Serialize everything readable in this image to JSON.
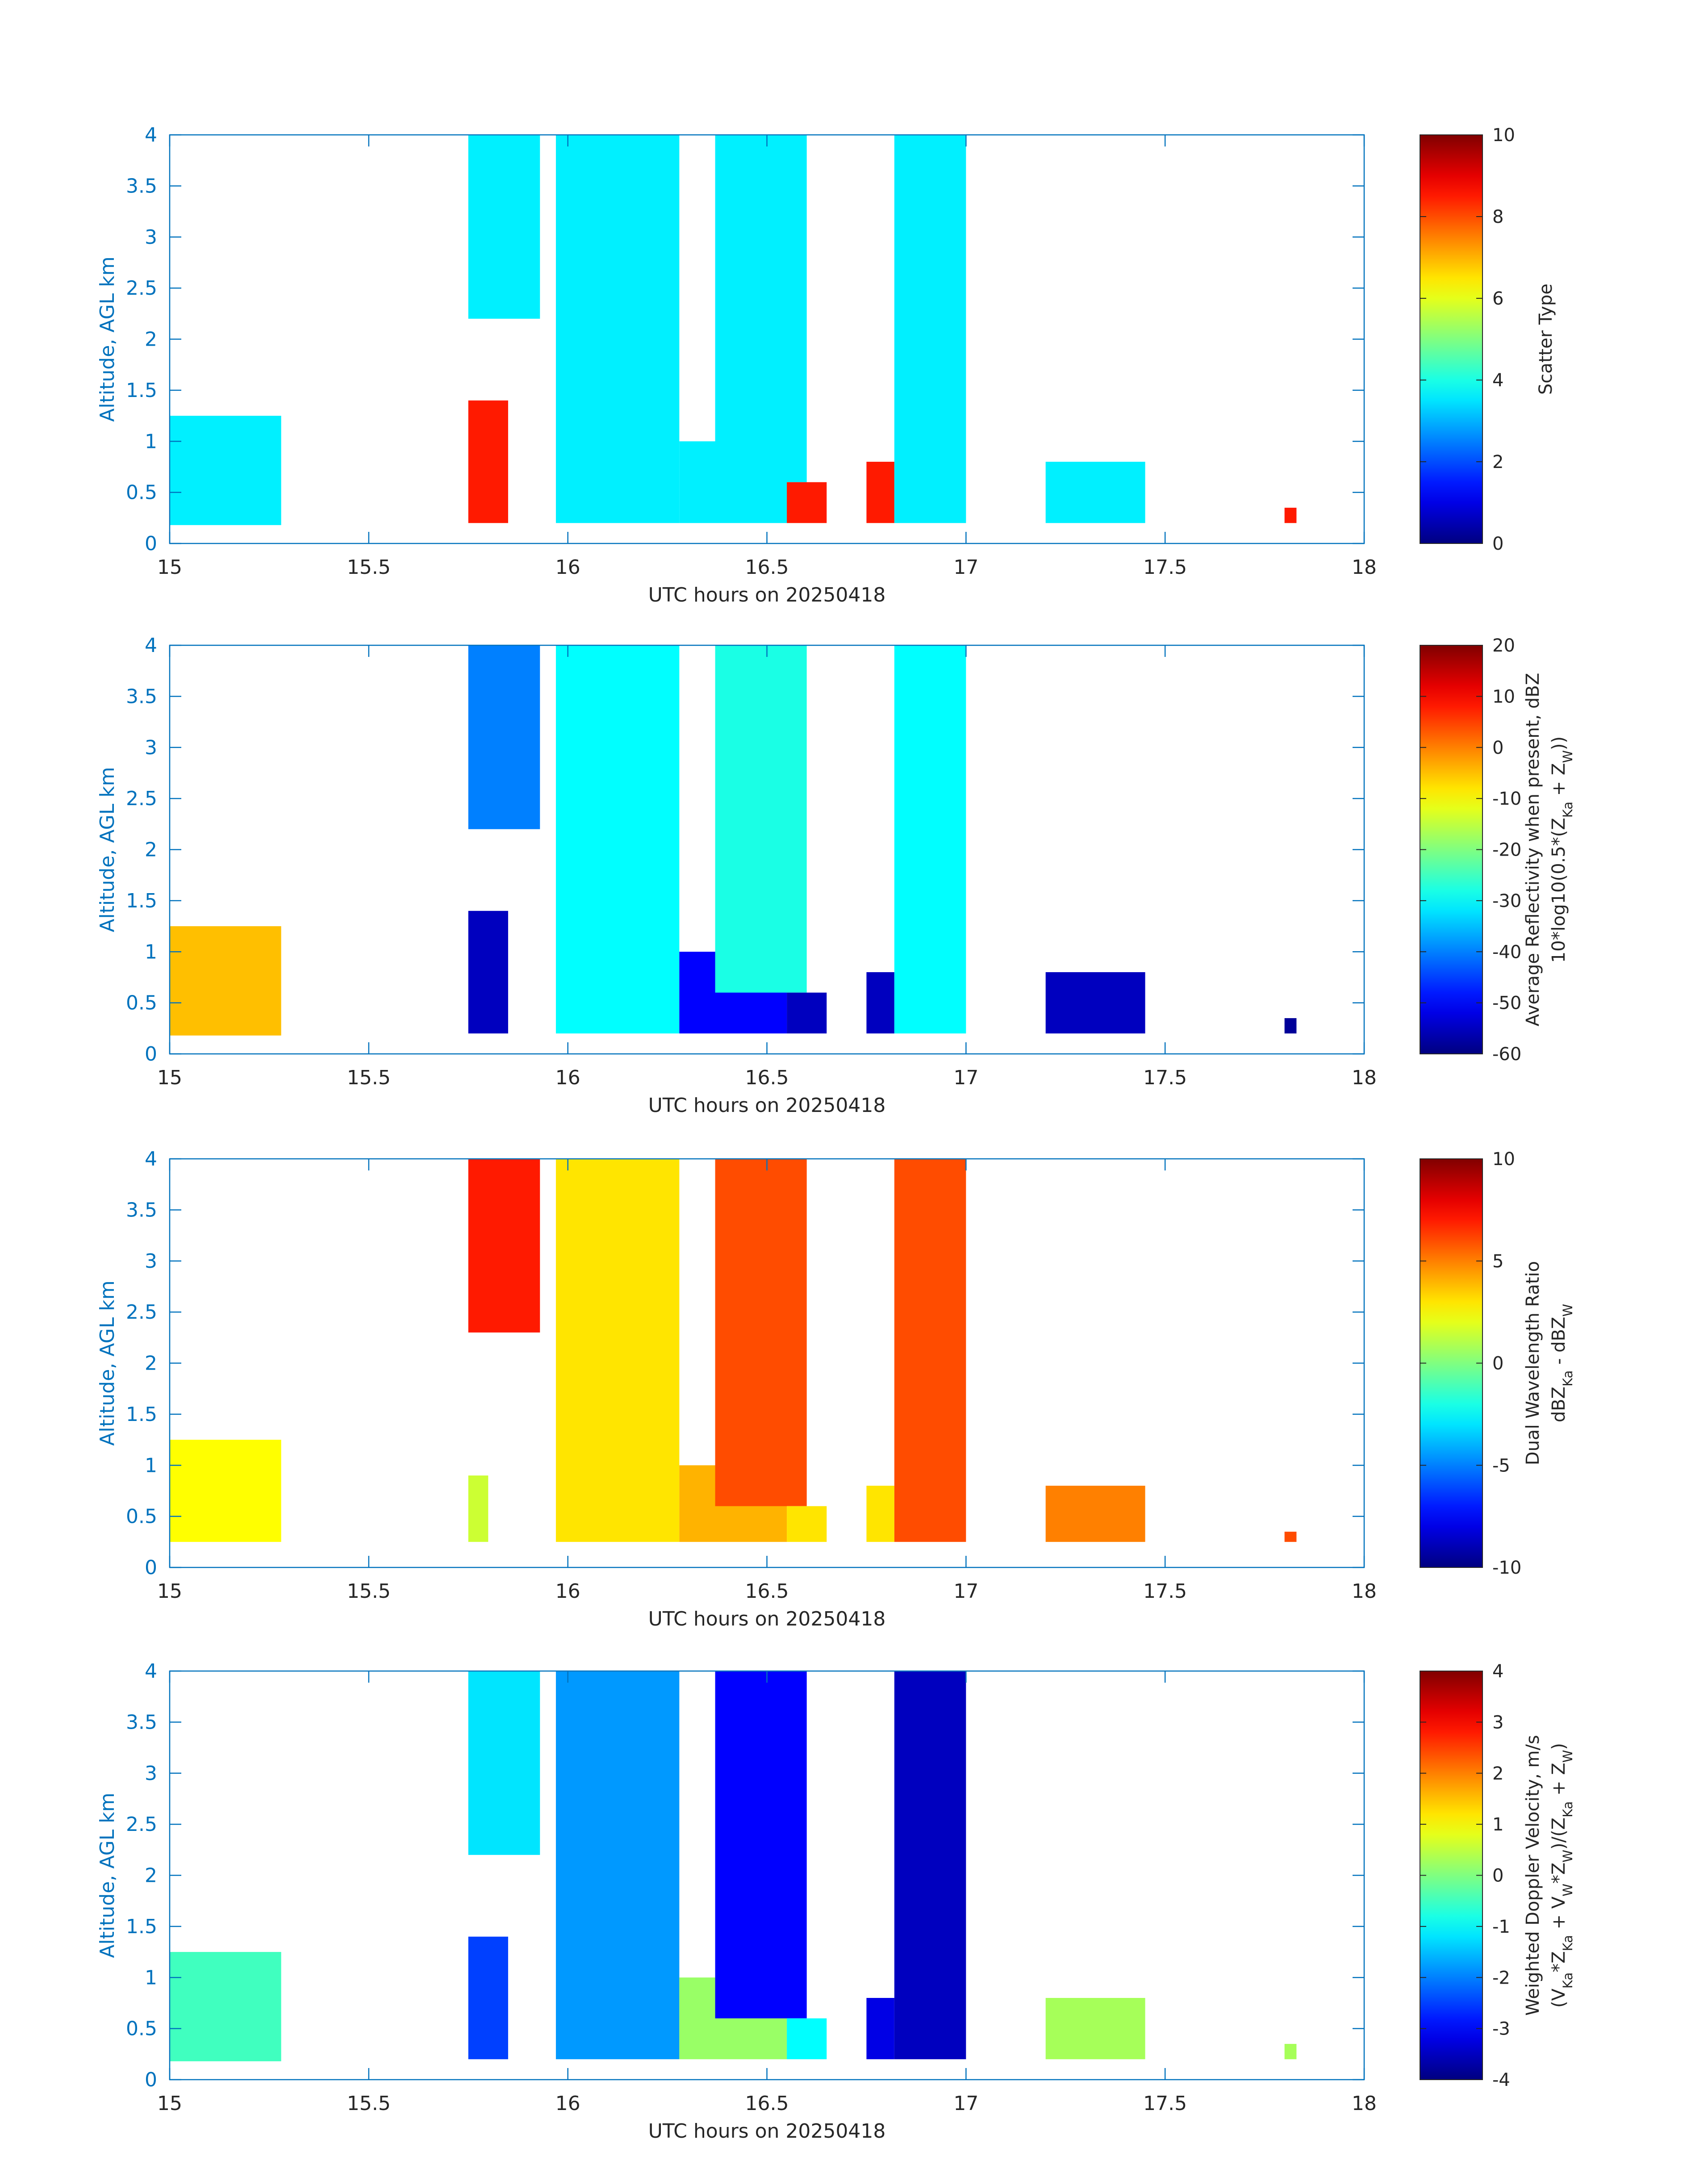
{
  "figure": {
    "xlabel": "UTC hours on 20250418",
    "ylabel": "Altitude, AGL km"
  },
  "colormap": "jet",
  "axis_color": "#0072BD",
  "chart_data": [
    {
      "type": "heatmap",
      "xlabel": "UTC hours on 20250418",
      "ylabel": "Altitude, AGL km",
      "xlim": [
        15,
        18
      ],
      "ylim": [
        0,
        4
      ],
      "xticks": [
        "15",
        "15.5",
        "16",
        "16.5",
        "17",
        "17.5",
        "18"
      ],
      "yticks": [
        "0",
        "0.5",
        "1",
        "1.5",
        "2",
        "2.5",
        "3",
        "3.5",
        "4"
      ],
      "colorbar": {
        "label_lines": [
          "Scatter Type"
        ],
        "range": [
          0,
          10
        ],
        "ticks": [
          "0",
          "2",
          "4",
          "6",
          "8",
          "10"
        ]
      },
      "regions": [
        {
          "x": [
            15.0,
            15.28
          ],
          "y": [
            0.18,
            1.25
          ],
          "value": 3.6
        },
        {
          "x": [
            15.75,
            15.85
          ],
          "y": [
            0.2,
            1.4
          ],
          "value": 8.5
        },
        {
          "x": [
            15.75,
            15.93
          ],
          "y": [
            2.2,
            4.0
          ],
          "value": 3.6
        },
        {
          "x": [
            15.97,
            16.28
          ],
          "y": [
            0.2,
            4.0
          ],
          "value": 3.6
        },
        {
          "x": [
            16.28,
            16.55
          ],
          "y": [
            0.2,
            1.0
          ],
          "value": 3.6
        },
        {
          "x": [
            16.37,
            16.6
          ],
          "y": [
            0.6,
            4.0
          ],
          "value": 3.6
        },
        {
          "x": [
            16.55,
            16.65
          ],
          "y": [
            0.2,
            0.6
          ],
          "value": 8.5
        },
        {
          "x": [
            16.75,
            16.82
          ],
          "y": [
            0.2,
            0.8
          ],
          "value": 8.5
        },
        {
          "x": [
            16.82,
            17.0
          ],
          "y": [
            0.2,
            4.0
          ],
          "value": 3.6
        },
        {
          "x": [
            17.2,
            17.45
          ],
          "y": [
            0.2,
            0.8
          ],
          "value": 3.6
        },
        {
          "x": [
            17.8,
            17.83
          ],
          "y": [
            0.2,
            0.35
          ],
          "value": 8.5
        }
      ]
    },
    {
      "type": "heatmap",
      "xlabel": "UTC hours on 20250418",
      "ylabel": "Altitude, AGL km",
      "xlim": [
        15,
        18
      ],
      "ylim": [
        0,
        4
      ],
      "xticks": [
        "15",
        "15.5",
        "16",
        "16.5",
        "17",
        "17.5",
        "18"
      ],
      "yticks": [
        "0",
        "0.5",
        "1",
        "1.5",
        "2",
        "2.5",
        "3",
        "3.5",
        "4"
      ],
      "colorbar": {
        "label_lines": [
          "Average Reflectivity when present, dBZ",
          "10*log10(0.5*(Z_Ka + Z_W))"
        ],
        "range": [
          -60,
          20
        ],
        "ticks": [
          "-60",
          "-50",
          "-40",
          "-30",
          "-20",
          "-10",
          "0",
          "10",
          "20"
        ]
      },
      "regions": [
        {
          "x": [
            15.0,
            15.28
          ],
          "y": [
            0.18,
            1.25
          ],
          "value": -5
        },
        {
          "x": [
            15.75,
            15.85
          ],
          "y": [
            0.2,
            1.4
          ],
          "value": -55
        },
        {
          "x": [
            15.75,
            15.93
          ],
          "y": [
            2.2,
            4.0
          ],
          "value": -40
        },
        {
          "x": [
            15.97,
            16.28
          ],
          "y": [
            0.2,
            4.0
          ],
          "value": -30
        },
        {
          "x": [
            16.28,
            16.55
          ],
          "y": [
            0.2,
            1.0
          ],
          "value": -50
        },
        {
          "x": [
            16.37,
            16.6
          ],
          "y": [
            0.6,
            4.0
          ],
          "value": -28
        },
        {
          "x": [
            16.55,
            16.65
          ],
          "y": [
            0.2,
            0.6
          ],
          "value": -55
        },
        {
          "x": [
            16.75,
            16.82
          ],
          "y": [
            0.2,
            0.8
          ],
          "value": -55
        },
        {
          "x": [
            16.82,
            17.0
          ],
          "y": [
            0.2,
            4.0
          ],
          "value": -30
        },
        {
          "x": [
            17.2,
            17.45
          ],
          "y": [
            0.2,
            0.8
          ],
          "value": -55
        },
        {
          "x": [
            17.8,
            17.83
          ],
          "y": [
            0.2,
            0.35
          ],
          "value": -58
        }
      ]
    },
    {
      "type": "heatmap",
      "xlabel": "UTC hours on 20250418",
      "ylabel": "Altitude, AGL km",
      "xlim": [
        15,
        18
      ],
      "ylim": [
        0,
        4
      ],
      "xticks": [
        "15",
        "15.5",
        "16",
        "16.5",
        "17",
        "17.5",
        "18"
      ],
      "yticks": [
        "0",
        "0.5",
        "1",
        "1.5",
        "2",
        "2.5",
        "3",
        "3.5",
        "4"
      ],
      "colorbar": {
        "label_lines": [
          "Dual Wavelength Ratio",
          "dBZ_Ka - dBZ_W"
        ],
        "range": [
          -10,
          10
        ],
        "ticks": [
          "-10",
          "-5",
          "0",
          "5",
          "10"
        ]
      },
      "regions": [
        {
          "x": [
            15.0,
            15.28
          ],
          "y": [
            0.25,
            1.25
          ],
          "value": 2.5
        },
        {
          "x": [
            15.75,
            15.8
          ],
          "y": [
            0.25,
            0.9
          ],
          "value": 1.5
        },
        {
          "x": [
            15.75,
            15.93
          ],
          "y": [
            2.3,
            4.0
          ],
          "value": 7
        },
        {
          "x": [
            15.97,
            16.28
          ],
          "y": [
            0.25,
            4.0
          ],
          "value": 3
        },
        {
          "x": [
            16.28,
            16.55
          ],
          "y": [
            0.25,
            1.0
          ],
          "value": 4
        },
        {
          "x": [
            16.37,
            16.6
          ],
          "y": [
            0.6,
            4.0
          ],
          "value": 6
        },
        {
          "x": [
            16.55,
            16.65
          ],
          "y": [
            0.25,
            0.6
          ],
          "value": 3
        },
        {
          "x": [
            16.75,
            16.82
          ],
          "y": [
            0.25,
            0.8
          ],
          "value": 3
        },
        {
          "x": [
            16.82,
            17.0
          ],
          "y": [
            0.25,
            4.0
          ],
          "value": 6
        },
        {
          "x": [
            17.2,
            17.45
          ],
          "y": [
            0.25,
            0.8
          ],
          "value": 5
        },
        {
          "x": [
            17.8,
            17.83
          ],
          "y": [
            0.25,
            0.35
          ],
          "value": 6
        }
      ]
    },
    {
      "type": "heatmap",
      "xlabel": "UTC hours on 20250418",
      "ylabel": "Altitude, AGL km",
      "xlim": [
        15,
        18
      ],
      "ylim": [
        0,
        4
      ],
      "xticks": [
        "15",
        "15.5",
        "16",
        "16.5",
        "17",
        "17.5",
        "18"
      ],
      "yticks": [
        "0",
        "0.5",
        "1",
        "1.5",
        "2",
        "2.5",
        "3",
        "3.5",
        "4"
      ],
      "colorbar": {
        "label_lines": [
          "Weighted Doppler Velocity, m/s",
          "(V_Ka*Z_Ka + V_W*Z_W)/(Z_Ka + Z_W)"
        ],
        "range": [
          -4,
          4
        ],
        "ticks": [
          "-4",
          "-3",
          "-2",
          "-1",
          "0",
          "1",
          "2",
          "3",
          "4"
        ]
      },
      "regions": [
        {
          "x": [
            15.0,
            15.28
          ],
          "y": [
            0.18,
            1.25
          ],
          "value": -0.5
        },
        {
          "x": [
            15.75,
            15.85
          ],
          "y": [
            0.2,
            1.4
          ],
          "value": -2.5
        },
        {
          "x": [
            15.75,
            15.93
          ],
          "y": [
            2.2,
            4.0
          ],
          "value": -1.2
        },
        {
          "x": [
            15.97,
            16.28
          ],
          "y": [
            0.2,
            4.0
          ],
          "value": -1.8
        },
        {
          "x": [
            16.28,
            16.55
          ],
          "y": [
            0.2,
            1.0
          ],
          "value": 0.2
        },
        {
          "x": [
            16.37,
            16.6
          ],
          "y": [
            0.6,
            4.0
          ],
          "value": -3
        },
        {
          "x": [
            16.55,
            16.65
          ],
          "y": [
            0.2,
            0.6
          ],
          "value": -1
        },
        {
          "x": [
            16.75,
            16.82
          ],
          "y": [
            0.2,
            0.8
          ],
          "value": -3.2
        },
        {
          "x": [
            16.82,
            17.0
          ],
          "y": [
            0.2,
            4.0
          ],
          "value": -3.5
        },
        {
          "x": [
            17.2,
            17.45
          ],
          "y": [
            0.2,
            0.8
          ],
          "value": 0.3
        },
        {
          "x": [
            17.8,
            17.83
          ],
          "y": [
            0.2,
            0.35
          ],
          "value": 0.3
        }
      ]
    }
  ]
}
